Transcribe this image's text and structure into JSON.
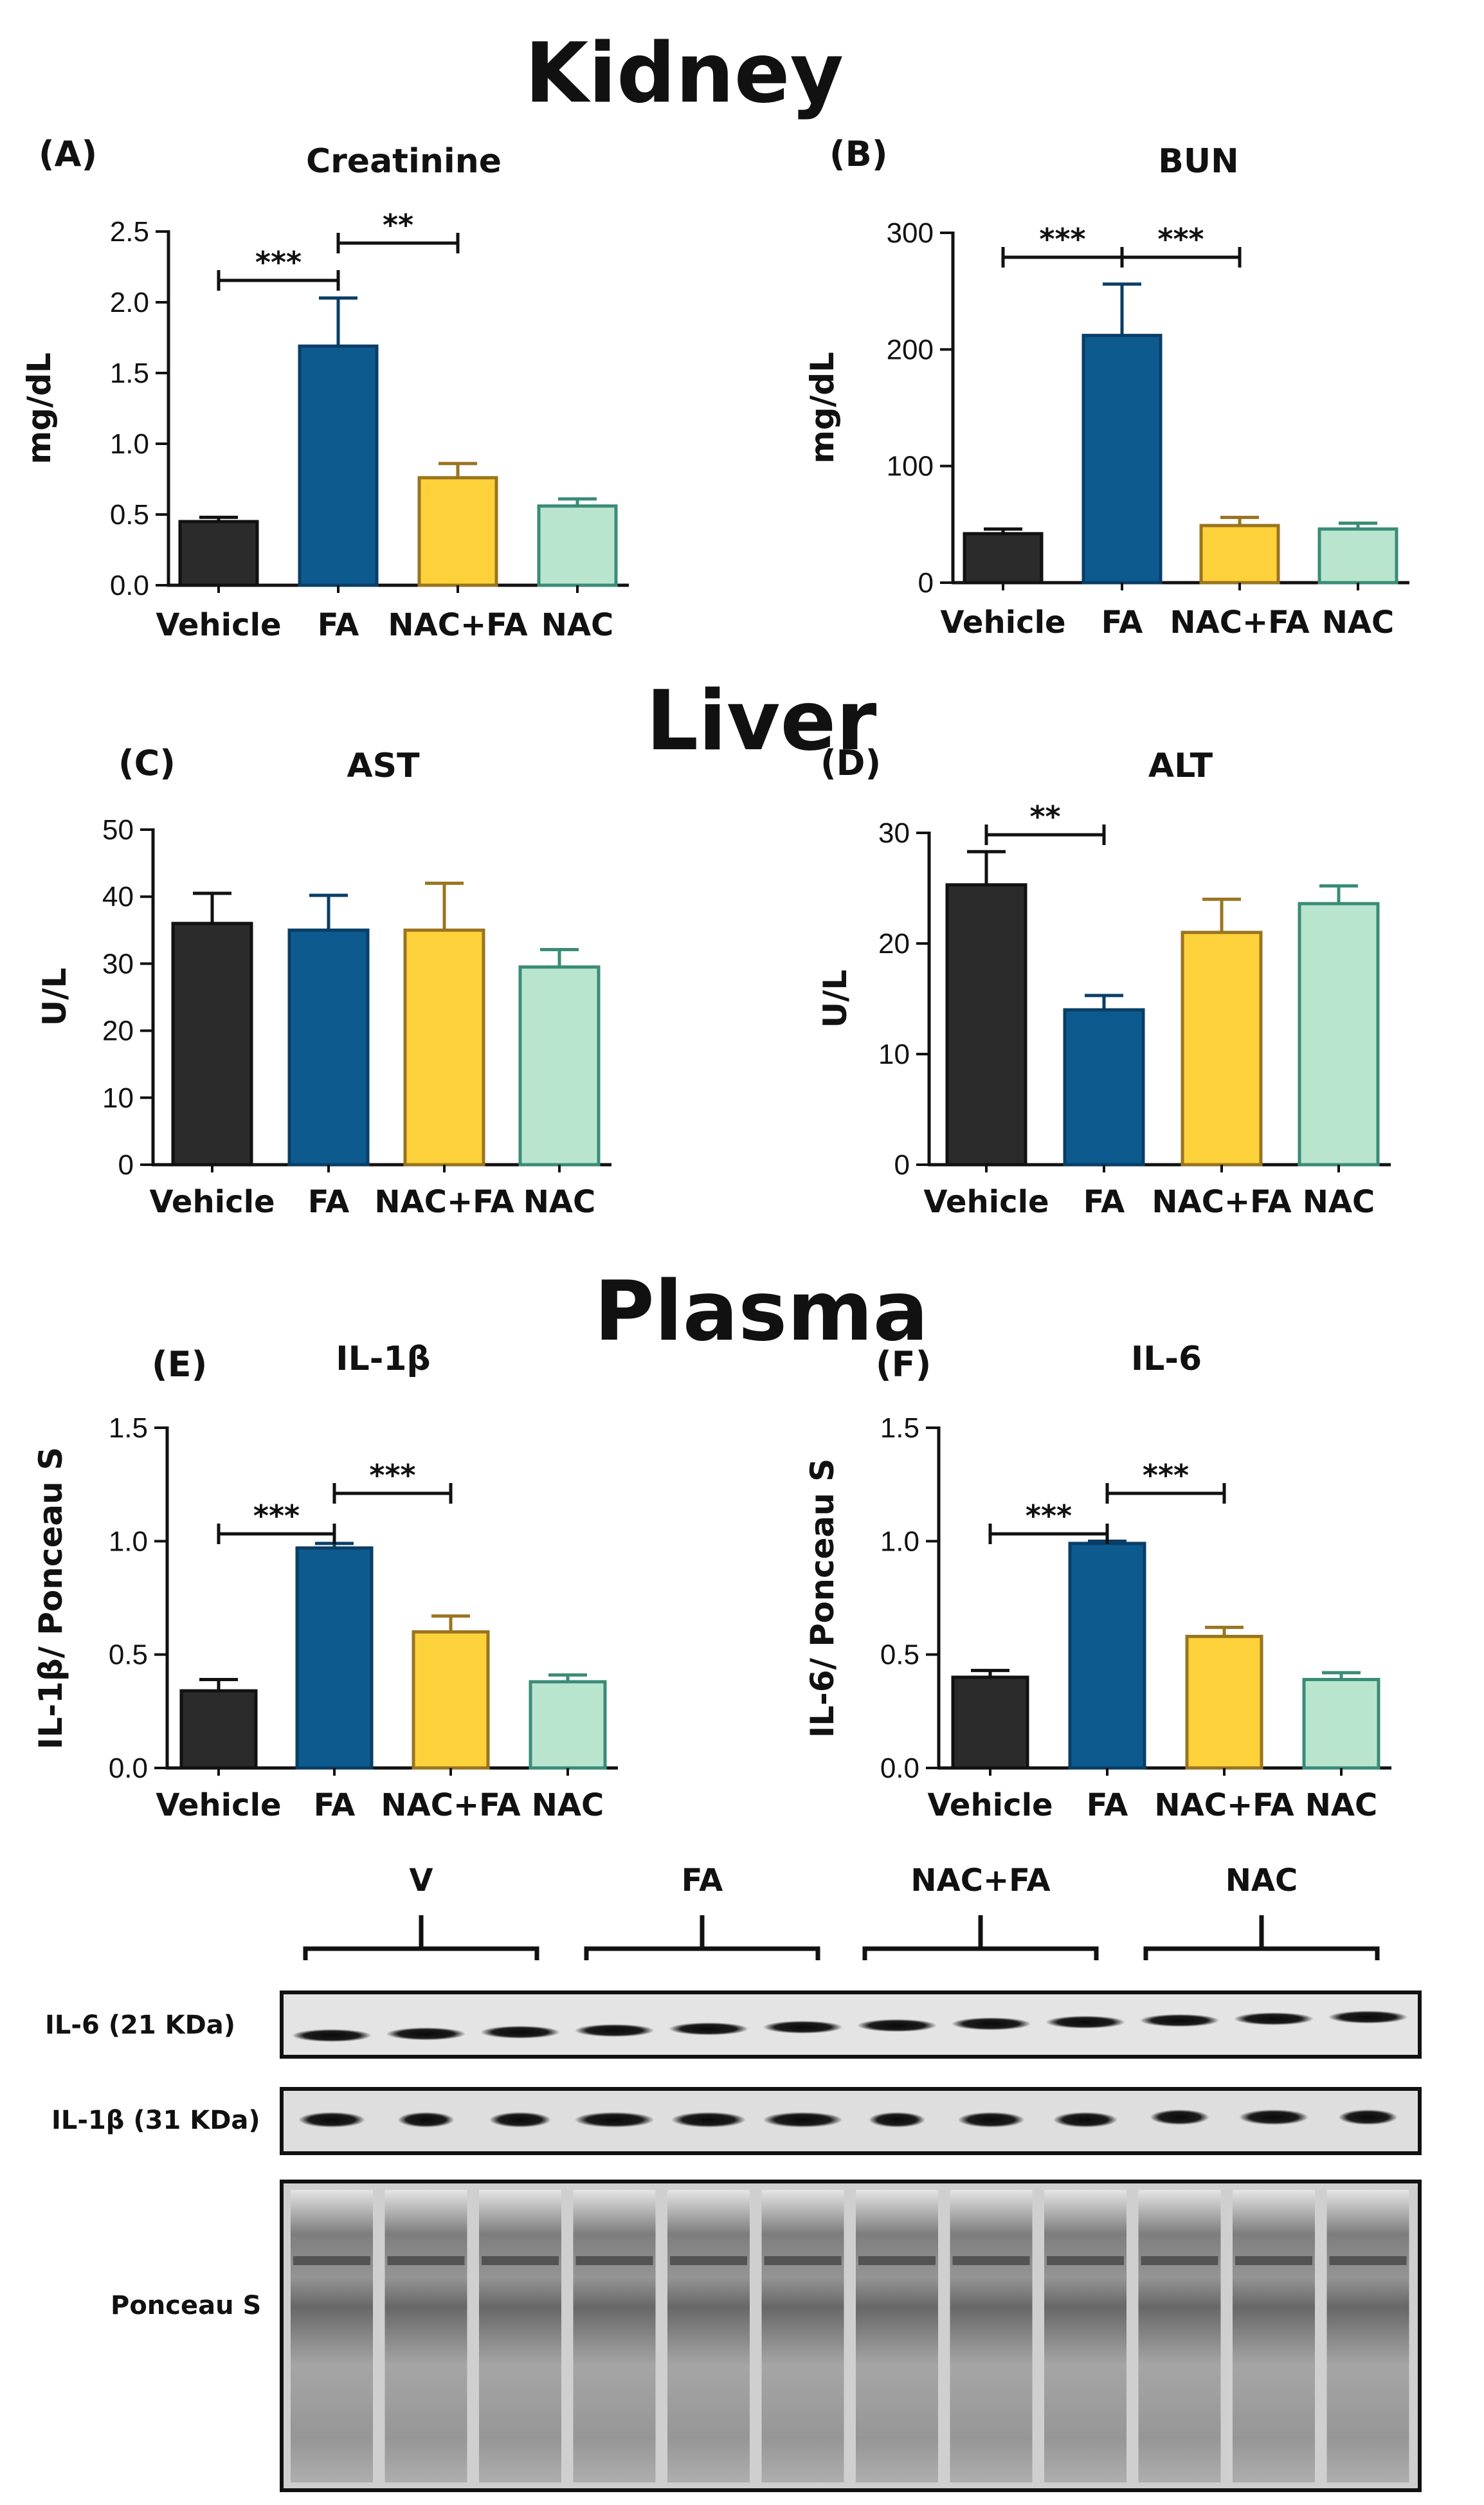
{
  "sections": {
    "kidney": "Kidney",
    "liver": "Liver",
    "plasma": "Plasma"
  },
  "chart_data": [
    {
      "panel": "(A)",
      "title": "Creatinine",
      "type": "bar",
      "ylabel": "mg/dL",
      "ylim": [
        0,
        2.5
      ],
      "yticks": [
        "0.0",
        "0.5",
        "1.0",
        "1.5",
        "2.0",
        "2.5"
      ],
      "categories": [
        "Vehicle",
        "FA",
        "NAC+FA",
        "NAC"
      ],
      "values": [
        0.45,
        1.69,
        0.76,
        0.56
      ],
      "errors": [
        0.03,
        0.34,
        0.1,
        0.05
      ],
      "significance": [
        {
          "from": "Vehicle",
          "to": "FA",
          "label": "***"
        },
        {
          "from": "FA",
          "to": "NAC+FA",
          "label": "**"
        }
      ]
    },
    {
      "panel": "(B)",
      "title": "BUN",
      "type": "bar",
      "ylabel": "mg/dL",
      "ylim": [
        0,
        300
      ],
      "yticks": [
        "0",
        "100",
        "200",
        "300"
      ],
      "categories": [
        "Vehicle",
        "FA",
        "NAC+FA",
        "NAC"
      ],
      "values": [
        42,
        212,
        49,
        46
      ],
      "errors": [
        4,
        44,
        7,
        5
      ],
      "significance": [
        {
          "from": "Vehicle",
          "to": "FA",
          "label": "***"
        },
        {
          "from": "FA",
          "to": "NAC+FA",
          "label": "***"
        }
      ]
    },
    {
      "panel": "(C)",
      "title": "AST",
      "type": "bar",
      "ylabel": "U/L",
      "ylim": [
        0,
        50
      ],
      "yticks": [
        "0",
        "10",
        "20",
        "30",
        "40",
        "50"
      ],
      "categories": [
        "Vehicle",
        "FA",
        "NAC+FA",
        "NAC"
      ],
      "values": [
        36,
        35,
        35,
        29.5
      ],
      "errors": [
        4.5,
        5.2,
        7,
        2.6
      ],
      "significance": []
    },
    {
      "panel": "(D)",
      "title": "ALT",
      "type": "bar",
      "ylabel": "U/L",
      "ylim": [
        0,
        30
      ],
      "yticks": [
        "0",
        "10",
        "20",
        "30"
      ],
      "categories": [
        "Vehicle",
        "FA",
        "NAC+FA",
        "NAC"
      ],
      "values": [
        25.3,
        14,
        21,
        23.6
      ],
      "errors": [
        3,
        1.3,
        3,
        1.6
      ],
      "significance": [
        {
          "from": "Vehicle",
          "to": "FA",
          "label": "**"
        }
      ]
    },
    {
      "panel": "(E)",
      "title": "IL-1β",
      "type": "bar",
      "ylabel": "IL-1β/ Ponceau S",
      "ylim": [
        0,
        1.5
      ],
      "yticks": [
        "0.0",
        "0.5",
        "1.0",
        "1.5"
      ],
      "categories": [
        "Vehicle",
        "FA",
        "NAC+FA",
        "NAC"
      ],
      "values": [
        0.34,
        0.97,
        0.6,
        0.38
      ],
      "errors": [
        0.05,
        0.02,
        0.07,
        0.03
      ],
      "significance": [
        {
          "from": "Vehicle",
          "to": "FA",
          "label": "***"
        },
        {
          "from": "FA",
          "to": "NAC+FA",
          "label": "***"
        }
      ]
    },
    {
      "panel": "(F)",
      "title": "IL-6",
      "type": "bar",
      "ylabel": "IL-6/ Ponceau S",
      "ylim": [
        0,
        1.5
      ],
      "yticks": [
        "0.0",
        "0.5",
        "1.0",
        "1.5"
      ],
      "categories": [
        "Vehicle",
        "FA",
        "NAC+FA",
        "NAC"
      ],
      "values": [
        0.4,
        0.99,
        0.58,
        0.39
      ],
      "errors": [
        0.03,
        0.01,
        0.04,
        0.03
      ],
      "significance": [
        {
          "from": "Vehicle",
          "to": "FA",
          "label": "***"
        },
        {
          "from": "FA",
          "to": "NAC+FA",
          "label": "***"
        }
      ]
    }
  ],
  "colors": {
    "fills": [
      "#2b2b2b",
      "#0d5a8f",
      "#fdd13a",
      "#b9e5cf"
    ],
    "strokes": [
      "#111111",
      "#0a3e66",
      "#9a7420",
      "#3a8c78"
    ]
  },
  "blot": {
    "groups": [
      "V",
      "FA",
      "NAC+FA",
      "NAC"
    ],
    "labels": {
      "il6": "IL-6 (21  KDa)",
      "il1b": "IL-1β (31  KDa)",
      "ponceau": "Ponceau S"
    },
    "lanes_per_group": 3
  }
}
